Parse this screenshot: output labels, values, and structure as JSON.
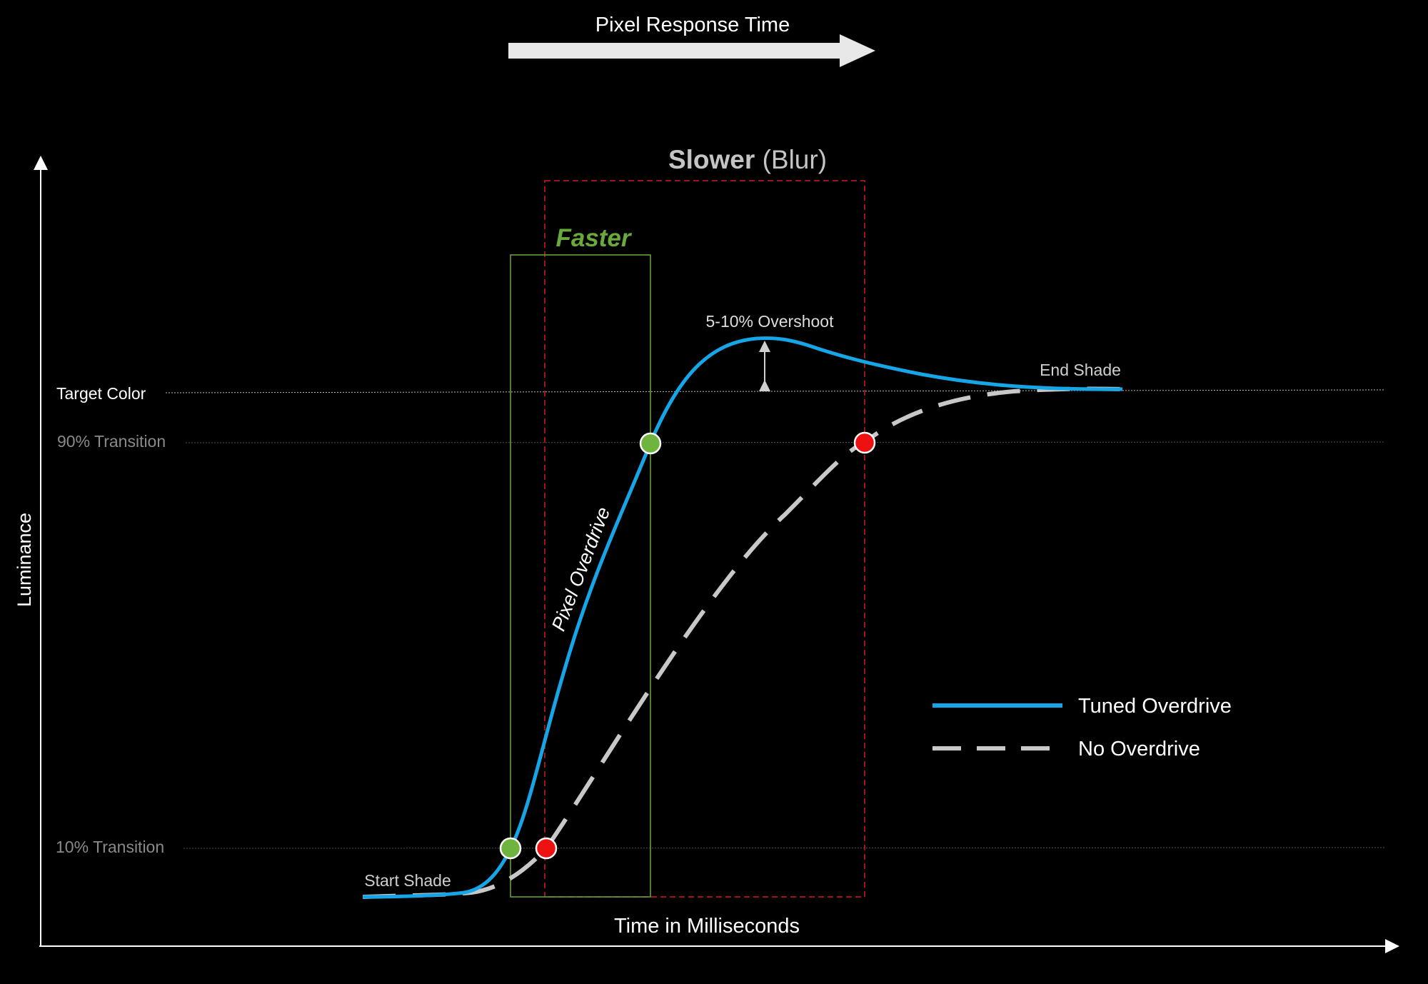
{
  "colors": {
    "background": "#000000",
    "tuned_curve": "#16a6e8",
    "no_od_curve": "#c8c8c8",
    "faster_green": "#6aaa3a",
    "slower_red": "#cc1f1f",
    "marker_green": "#6fb43f",
    "marker_red": "#ee1111",
    "axis": "#ffffff",
    "muted_text": "#8a8a8a"
  },
  "header": {
    "title": "Pixel Response Time"
  },
  "axes": {
    "y_label": "Luminance",
    "x_label": "Time in Milliseconds"
  },
  "levels": {
    "target_color": "Target Color",
    "transition_90": "90% Transition",
    "transition_10": "10% Transition"
  },
  "windows": {
    "slower_bold": "Slower",
    "slower_rest": " (Blur)",
    "faster": "Faster"
  },
  "annotations": {
    "overshoot": "5-10% Overshoot",
    "end_shade": "End Shade",
    "start_shade": "Start Shade",
    "pixel_overdrive": "Pixel Overdrive"
  },
  "legend": [
    {
      "label": "Tuned Overdrive",
      "style": "solid",
      "color": "#16a6e8"
    },
    {
      "label": "No Overdrive",
      "style": "dashed",
      "color": "#c8c8c8"
    }
  ],
  "icons": {
    "arrow": "right-arrow-icon",
    "double_arrow": "up-down-arrow-icon"
  }
}
